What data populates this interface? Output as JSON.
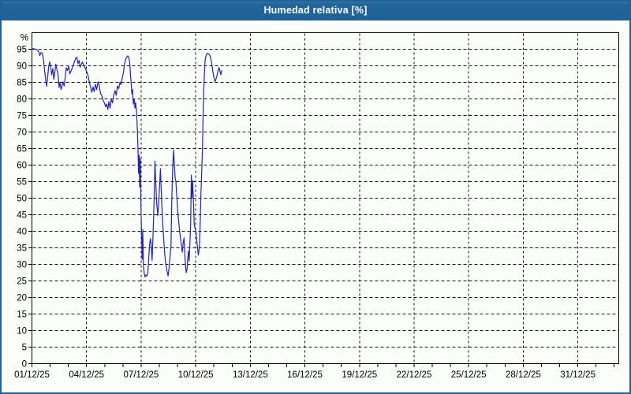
{
  "window": {
    "title": "Humedad relativa [%]"
  },
  "colors": {
    "titlebar_bg": "#1e6296",
    "titlebar_text": "#ffffff",
    "window_border": "#1e6296",
    "chart_bg": "#fbfdf9",
    "grid": "#141414",
    "axis": "#000000",
    "series_line": "#2222c0",
    "label_text": "#000000"
  },
  "chart_data": {
    "type": "line",
    "title": "Humedad relativa [%]",
    "ylabel_unit": "%",
    "ylim": [
      0,
      100
    ],
    "xlim_days": [
      0,
      32.25
    ],
    "grid": "dashed",
    "legend": "none",
    "y_tick_values": [
      0,
      5,
      10,
      15,
      20,
      25,
      30,
      35,
      40,
      45,
      50,
      55,
      60,
      65,
      70,
      75,
      80,
      85,
      90,
      95
    ],
    "y_tick_labels": [
      "0",
      "5",
      "10",
      "15",
      "20",
      "25",
      "30",
      "35",
      "40",
      "45",
      "50",
      "55",
      "60",
      "65",
      "70",
      "75",
      "80",
      "85",
      "90",
      "95"
    ],
    "x_tick_days": [
      0,
      3,
      6,
      9,
      12,
      15,
      18,
      21,
      24,
      27,
      30
    ],
    "x_tick_labels": [
      "01/12/25",
      "04/12/25",
      "07/12/25",
      "10/12/25",
      "13/12/25",
      "16/12/25",
      "19/12/25",
      "22/12/25",
      "25/12/25",
      "28/12/25",
      "31/12/25"
    ],
    "x_minor_tick_step_days": 1,
    "series": [
      {
        "name": "Humedad relativa",
        "color": "#2222c0",
        "points_day_pct": [
          [
            0.0,
            94.8
          ],
          [
            0.06,
            95.2
          ],
          [
            0.14,
            95.1
          ],
          [
            0.22,
            95.0
          ],
          [
            0.3,
            94.7
          ],
          [
            0.38,
            94.2
          ],
          [
            0.43,
            93.1
          ],
          [
            0.5,
            94.0
          ],
          [
            0.57,
            93.8
          ],
          [
            0.64,
            91.5
          ],
          [
            0.7,
            88.5
          ],
          [
            0.76,
            85.6
          ],
          [
            0.81,
            83.8
          ],
          [
            0.87,
            87.0
          ],
          [
            0.92,
            89.8
          ],
          [
            0.98,
            91.2
          ],
          [
            1.04,
            89.2
          ],
          [
            1.09,
            87.3
          ],
          [
            1.15,
            89.2
          ],
          [
            1.2,
            85.9
          ],
          [
            1.26,
            88.0
          ],
          [
            1.31,
            90.5
          ],
          [
            1.37,
            88.9
          ],
          [
            1.43,
            87.6
          ],
          [
            1.49,
            83.4
          ],
          [
            1.54,
            85.1
          ],
          [
            1.6,
            82.8
          ],
          [
            1.66,
            84.1
          ],
          [
            1.71,
            85.2
          ],
          [
            1.77,
            83.9
          ],
          [
            1.83,
            86.5
          ],
          [
            1.89,
            89.4
          ],
          [
            1.95,
            88.6
          ],
          [
            2.02,
            89.9
          ],
          [
            2.08,
            87.6
          ],
          [
            2.15,
            88.4
          ],
          [
            2.21,
            89.3
          ],
          [
            2.28,
            90.4
          ],
          [
            2.35,
            91.4
          ],
          [
            2.41,
            92.3
          ],
          [
            2.47,
            92.6
          ],
          [
            2.53,
            90.7
          ],
          [
            2.59,
            91.6
          ],
          [
            2.65,
            89.6
          ],
          [
            2.71,
            90.3
          ],
          [
            2.77,
            91.1
          ],
          [
            2.83,
            90.4
          ],
          [
            2.9,
            89.7
          ],
          [
            2.96,
            88.8
          ],
          [
            3.03,
            87.9
          ],
          [
            3.09,
            86.9
          ],
          [
            3.16,
            84.8
          ],
          [
            3.23,
            83.4
          ],
          [
            3.29,
            82.0
          ],
          [
            3.36,
            83.6
          ],
          [
            3.42,
            82.2
          ],
          [
            3.49,
            84.4
          ],
          [
            3.56,
            82.8
          ],
          [
            3.63,
            85.2
          ],
          [
            3.7,
            83.9
          ],
          [
            3.77,
            81.6
          ],
          [
            3.84,
            81.0
          ],
          [
            3.91,
            79.6
          ],
          [
            3.98,
            78.8
          ],
          [
            4.05,
            77.6
          ],
          [
            4.11,
            78.5
          ],
          [
            4.17,
            76.8
          ],
          [
            4.23,
            79.2
          ],
          [
            4.29,
            77.2
          ],
          [
            4.36,
            79.9
          ],
          [
            4.43,
            78.8
          ],
          [
            4.5,
            81.2
          ],
          [
            4.57,
            82.5
          ],
          [
            4.63,
            81.1
          ],
          [
            4.7,
            83.9
          ],
          [
            4.77,
            83.1
          ],
          [
            4.84,
            85.1
          ],
          [
            4.9,
            84.3
          ],
          [
            4.97,
            86.7
          ],
          [
            5.03,
            88.0
          ],
          [
            5.09,
            90.5
          ],
          [
            5.15,
            91.9
          ],
          [
            5.21,
            92.6
          ],
          [
            5.27,
            93.0
          ],
          [
            5.33,
            92.4
          ],
          [
            5.38,
            90.6
          ],
          [
            5.42,
            87.1
          ],
          [
            5.45,
            85.1
          ],
          [
            5.49,
            81.5
          ],
          [
            5.53,
            82.8
          ],
          [
            5.57,
            78.4
          ],
          [
            5.62,
            80.0
          ],
          [
            5.66,
            77.2
          ],
          [
            5.7,
            78.8
          ],
          [
            5.75,
            76.0
          ],
          [
            5.79,
            71.0
          ],
          [
            5.83,
            64.6
          ],
          [
            5.86,
            57.5
          ],
          [
            5.89,
            63.0
          ],
          [
            5.92,
            53.4
          ],
          [
            5.95,
            62.0
          ],
          [
            5.99,
            47.5
          ],
          [
            6.03,
            38.0
          ],
          [
            6.06,
            31.5
          ],
          [
            6.09,
            40.5
          ],
          [
            6.13,
            29.5
          ],
          [
            6.17,
            27.3
          ],
          [
            6.22,
            26.2
          ],
          [
            6.27,
            26.8
          ],
          [
            6.32,
            26.5
          ],
          [
            6.37,
            27.6
          ],
          [
            6.41,
            31.0
          ],
          [
            6.46,
            35.6
          ],
          [
            6.51,
            37.8
          ],
          [
            6.55,
            36.2
          ],
          [
            6.6,
            31.2
          ],
          [
            6.65,
            38.0
          ],
          [
            6.7,
            47.0
          ],
          [
            6.76,
            61.2
          ],
          [
            6.8,
            55.0
          ],
          [
            6.85,
            49.0
          ],
          [
            6.92,
            44.7
          ],
          [
            6.98,
            50.0
          ],
          [
            7.06,
            58.9
          ],
          [
            7.12,
            50.0
          ],
          [
            7.18,
            43.0
          ],
          [
            7.24,
            38.0
          ],
          [
            7.3,
            33.0
          ],
          [
            7.36,
            30.0
          ],
          [
            7.42,
            28.0
          ],
          [
            7.48,
            26.5
          ],
          [
            7.54,
            29.0
          ],
          [
            7.6,
            33.0
          ],
          [
            7.64,
            35.6
          ],
          [
            7.68,
            48.0
          ],
          [
            7.73,
            58.0
          ],
          [
            7.78,
            64.6
          ],
          [
            7.83,
            60.0
          ],
          [
            7.87,
            56.0
          ],
          [
            7.91,
            55.1
          ],
          [
            7.97,
            49.5
          ],
          [
            8.03,
            44.7
          ],
          [
            8.09,
            41.6
          ],
          [
            8.15,
            38.5
          ],
          [
            8.2,
            36.4
          ],
          [
            8.26,
            33.7
          ],
          [
            8.31,
            36.4
          ],
          [
            8.36,
            38.0
          ],
          [
            8.4,
            33.0
          ],
          [
            8.44,
            29.5
          ],
          [
            8.48,
            27.5
          ],
          [
            8.52,
            28.5
          ],
          [
            8.56,
            31.7
          ],
          [
            8.6,
            34.0
          ],
          [
            8.64,
            31.0
          ],
          [
            8.68,
            36.0
          ],
          [
            8.72,
            42.0
          ],
          [
            8.76,
            57.0
          ],
          [
            8.79,
            49.9
          ],
          [
            8.83,
            55.3
          ],
          [
            8.88,
            48.0
          ],
          [
            8.92,
            42.0
          ],
          [
            8.97,
            40.8
          ],
          [
            9.01,
            40.0
          ],
          [
            9.06,
            37.0
          ],
          [
            9.1,
            35.2
          ],
          [
            9.14,
            32.8
          ],
          [
            9.17,
            33.5
          ],
          [
            9.21,
            36.0
          ],
          [
            9.25,
            43.0
          ],
          [
            9.28,
            50.3
          ],
          [
            9.31,
            55.0
          ],
          [
            9.34,
            59.8
          ],
          [
            9.37,
            65.0
          ],
          [
            9.4,
            73.6
          ],
          [
            9.43,
            80.0
          ],
          [
            9.46,
            85.0
          ],
          [
            9.49,
            89.0
          ],
          [
            9.52,
            91.8
          ],
          [
            9.56,
            92.8
          ],
          [
            9.6,
            93.5
          ],
          [
            9.65,
            93.8
          ],
          [
            9.71,
            93.6
          ],
          [
            9.77,
            93.2
          ],
          [
            9.83,
            92.2
          ],
          [
            9.89,
            90.3
          ],
          [
            9.95,
            88.1
          ],
          [
            10.01,
            86.2
          ],
          [
            10.06,
            85.2
          ],
          [
            10.11,
            85.9
          ],
          [
            10.17,
            87.0
          ],
          [
            10.23,
            88.6
          ],
          [
            10.28,
            89.5
          ],
          [
            10.33,
            88.4
          ],
          [
            10.38,
            87.3
          ],
          [
            10.43,
            88.6
          ]
        ]
      }
    ]
  }
}
